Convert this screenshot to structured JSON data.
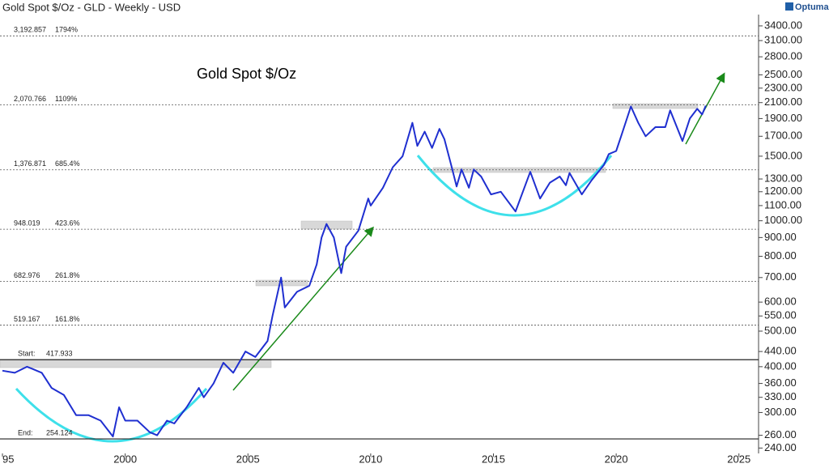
{
  "chart_data": {
    "type": "line",
    "title": "Gold Spot $/Oz - GLD - Weekly - USD",
    "brand": "Optuma",
    "annotation": "Gold Spot $/Oz",
    "log_y": true,
    "xlim": [
      1994.9,
      2025.8
    ],
    "ylim": [
      232,
      3650
    ],
    "xticks": [
      {
        "value": 1995,
        "label": "95"
      },
      2000,
      2005,
      2010,
      2015,
      2020,
      2025
    ],
    "yticks": [
      {
        "value": 240,
        "label": "240.00"
      },
      {
        "value": 260,
        "label": "260.00"
      },
      {
        "value": 300,
        "label": "300.00"
      },
      {
        "value": 330,
        "label": "330.00"
      },
      {
        "value": 360,
        "label": "360.00"
      },
      {
        "value": 400,
        "label": "400.00"
      },
      {
        "value": 440,
        "label": "440.00"
      },
      {
        "value": 500,
        "label": "500.00"
      },
      {
        "value": 550,
        "label": "550.00"
      },
      {
        "value": 600,
        "label": "600.00"
      },
      {
        "value": 700,
        "label": "700.00"
      },
      {
        "value": 800,
        "label": "800.00"
      },
      {
        "value": 900,
        "label": "900.00"
      },
      {
        "value": 1000,
        "label": "1000.00"
      },
      {
        "value": 1100,
        "label": "1100.00"
      },
      {
        "value": 1200,
        "label": "1200.00"
      },
      {
        "value": 1300,
        "label": "1300.00"
      },
      {
        "value": 1500,
        "label": "1500.00"
      },
      {
        "value": 1700,
        "label": "1700.00"
      },
      {
        "value": 1900,
        "label": "1900.00"
      },
      {
        "value": 2100,
        "label": "2100.00"
      },
      {
        "value": 2300,
        "label": "2300.00"
      },
      {
        "value": 2500,
        "label": "2500.00"
      },
      {
        "value": 2800,
        "label": "2800.00"
      },
      {
        "value": 3100,
        "label": "3100.00"
      },
      {
        "value": 3400,
        "label": "3400.00"
      }
    ],
    "levels": [
      {
        "value": 3192.857,
        "label": "3,192.857",
        "pct": "1794%"
      },
      {
        "value": 2070.766,
        "label": "2,070.766",
        "pct": "1109%"
      },
      {
        "value": 1376.871,
        "label": "1,376.871",
        "pct": "685.4%"
      },
      {
        "value": 948.019,
        "label": "948.019",
        "pct": "423.6%"
      },
      {
        "value": 682.976,
        "label": "682.976",
        "pct": "261.8%"
      },
      {
        "value": 519.167,
        "label": "519.167",
        "pct": "161.8%"
      },
      {
        "name": "Start:",
        "value": 417.933
      },
      {
        "name": "End:",
        "value": 254.124
      }
    ],
    "series": [
      {
        "color": "#1f2fd0",
        "x": [
          1995.0,
          1995.5,
          1996.0,
          1996.2,
          1996.6,
          1997.0,
          1997.5,
          1998.0,
          1998.5,
          1999.0,
          1999.5,
          1999.75,
          2000.0,
          2000.5,
          2001.0,
          2001.3,
          2001.7,
          2002.0,
          2002.5,
          2003.0,
          2003.2,
          2003.6,
          2004.0,
          2004.4,
          2004.9,
          2005.3,
          2005.8,
          2006.0,
          2006.35,
          2006.5,
          2007.0,
          2007.5,
          2007.8,
          2008.0,
          2008.2,
          2008.5,
          2008.8,
          2009.0,
          2009.5,
          2009.9,
          2010.0,
          2010.5,
          2010.9,
          2011.3,
          2011.7,
          2011.9,
          2012.2,
          2012.5,
          2012.8,
          2013.0,
          2013.3,
          2013.5,
          2013.7,
          2014.0,
          2014.2,
          2014.5,
          2014.9,
          2015.3,
          2015.9,
          2016.5,
          2016.9,
          2017.3,
          2017.7,
          2017.95,
          2018.1,
          2018.6,
          2019.0,
          2019.5,
          2019.7,
          2020.0,
          2020.2,
          2020.6,
          2020.9,
          2021.2,
          2021.6,
          2022.0,
          2022.2,
          2022.7,
          2023.0,
          2023.3,
          2023.5,
          2023.65
        ],
        "values": [
          390,
          385,
          400,
          395,
          385,
          350,
          335,
          295,
          295,
          285,
          258,
          310,
          285,
          285,
          265,
          260,
          285,
          280,
          310,
          350,
          330,
          360,
          410,
          385,
          440,
          425,
          470,
          550,
          700,
          580,
          640,
          665,
          760,
          900,
          980,
          900,
          720,
          850,
          940,
          1150,
          1100,
          1230,
          1400,
          1500,
          1850,
          1600,
          1750,
          1580,
          1780,
          1670,
          1400,
          1240,
          1380,
          1230,
          1380,
          1320,
          1180,
          1200,
          1060,
          1360,
          1150,
          1270,
          1320,
          1250,
          1350,
          1180,
          1290,
          1420,
          1520,
          1550,
          1700,
          2050,
          1850,
          1700,
          1800,
          1800,
          2000,
          1650,
          1900,
          2020,
          1950,
          2060
        ]
      }
    ]
  }
}
